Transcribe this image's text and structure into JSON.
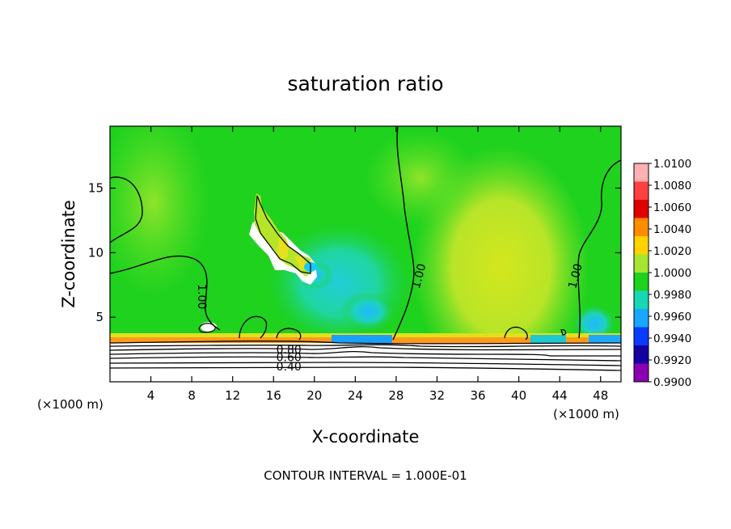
{
  "chart_data": {
    "type": "heatmap",
    "title": "saturation ratio",
    "xlabel": "X-coordinate",
    "ylabel": "Z-coordinate",
    "x_unit": "(×1000 m)",
    "z_unit": "(×1000 m)",
    "xlim": [
      0,
      50
    ],
    "ylim": [
      0,
      19.8
    ],
    "x_ticks": [
      4,
      8,
      12,
      16,
      20,
      24,
      28,
      32,
      36,
      40,
      44,
      48
    ],
    "y_ticks": [
      5,
      10,
      15
    ],
    "colorbar": {
      "levels": [
        "1.0100",
        "1.0080",
        "1.0060",
        "1.0040",
        "1.0020",
        "1.0000",
        "0.9980",
        "0.9960",
        "0.9940",
        "0.9920",
        "0.9900"
      ],
      "colors": [
        "#ffb0b0",
        "#ff4040",
        "#e00000",
        "#ff8c00",
        "#ffd200",
        "#a6e632",
        "#1ed21e",
        "#18d7b4",
        "#18a8ff",
        "#0a3cff",
        "#1500a0",
        "#8b00b0"
      ]
    },
    "contour_labels": [
      {
        "text": "1.00",
        "x": 9.0,
        "z": 6.6
      },
      {
        "text": "1.00",
        "x": 30.2,
        "z": 8.2
      },
      {
        "text": "1.00",
        "x": 45.5,
        "z": 8.2
      },
      {
        "text": "0.80",
        "x": 17.5,
        "z": 2.5
      },
      {
        "text": "0.60",
        "x": 17.5,
        "z": 1.9
      },
      {
        "text": "0.40",
        "x": 17.5,
        "z": 1.2
      }
    ],
    "contour_interval": "CONTOUR INTERVAL = 1.000E-01"
  }
}
